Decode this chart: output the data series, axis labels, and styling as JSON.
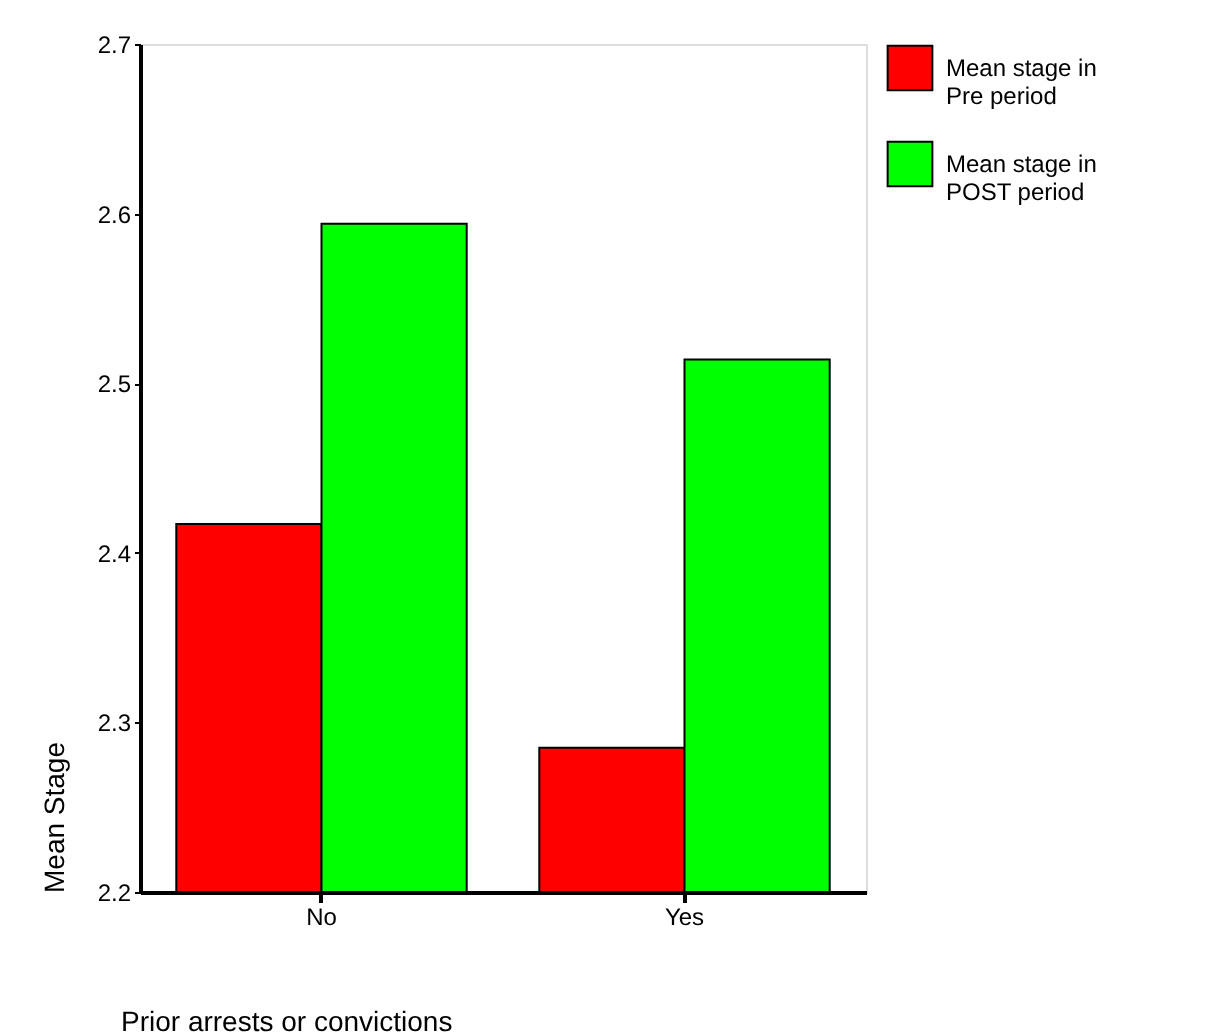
{
  "chart_data": {
    "type": "bar",
    "xlabel": "Prior arrests or convictions",
    "ylabel": "Mean Stage",
    "categories": [
      "No",
      "Yes"
    ],
    "series": [
      {
        "name": "Mean stage in\nPre period",
        "color": "#ff0000",
        "values": [
          2.417,
          2.285
        ]
      },
      {
        "name": "Mean stage in\nPOST period",
        "color": "#00ff00",
        "values": [
          2.594,
          2.514
        ]
      }
    ],
    "ylim": [
      2.2,
      2.7
    ],
    "yticks": [
      2.2,
      2.3,
      2.4,
      2.5,
      2.6,
      2.7
    ],
    "grid": false,
    "legend": "right"
  }
}
